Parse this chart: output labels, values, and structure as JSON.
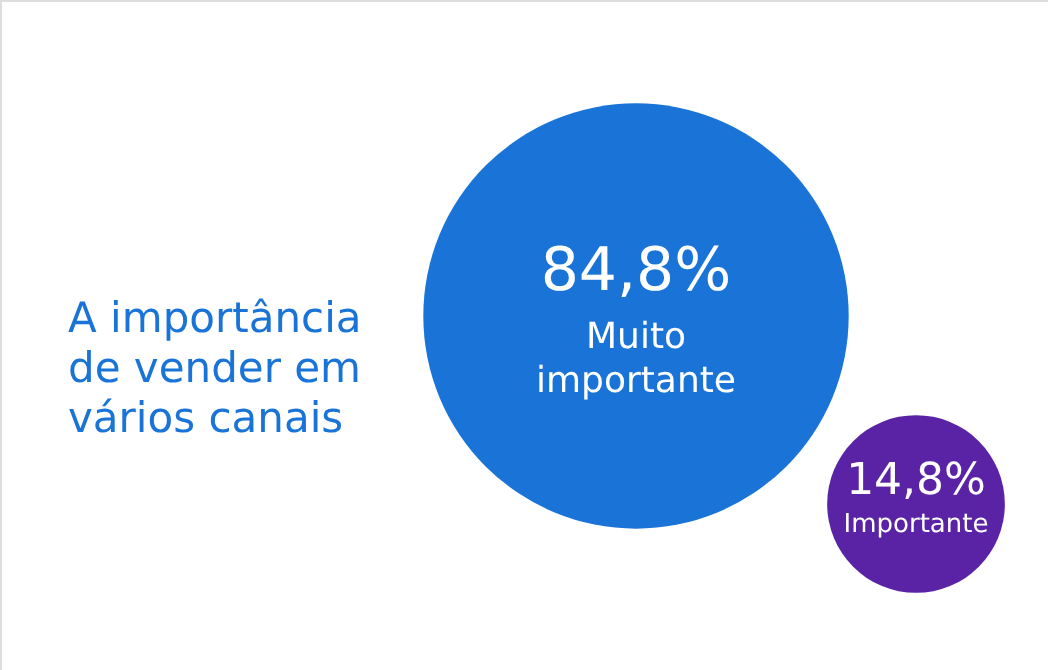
{
  "chart_data": {
    "type": "other",
    "title": "A importância\nde vender em\nvários canais",
    "categories": [
      "Muito importante",
      "Importante"
    ],
    "values": [
      84.8,
      14.8
    ],
    "value_labels": [
      "84,8%",
      "14,8%"
    ],
    "colors": [
      "#1a74d8",
      "#5a23a5"
    ]
  }
}
